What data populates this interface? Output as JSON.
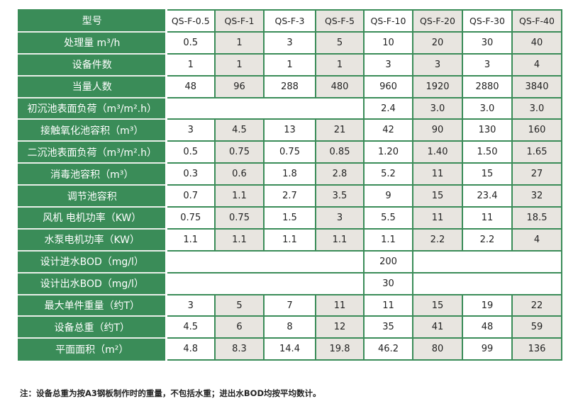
{
  "table": {
    "header_label": "型号",
    "models": [
      "QS-F-0.5",
      "QS-F-1",
      "QS-F-3",
      "QS-F-5",
      "QS-F-10",
      "QS-F-20",
      "QS-F-30",
      "QS-F-40"
    ],
    "rows": [
      {
        "label": "处理量 m³/h",
        "values": [
          "0.5",
          "1",
          "3",
          "5",
          "10",
          "20",
          "30",
          "40"
        ]
      },
      {
        "label": "设备件数",
        "values": [
          "1",
          "1",
          "1",
          "1",
          "3",
          "3",
          "3",
          "4"
        ]
      },
      {
        "label": "当量人数",
        "values": [
          "48",
          "96",
          "288",
          "480",
          "960",
          "1920",
          "2880",
          "3840"
        ]
      },
      {
        "label": "初沉池表面负荷（m³/m².h）",
        "values": [
          null,
          "2.4",
          "3.0",
          "3.0",
          "3.0"
        ],
        "spans": [
          4,
          1,
          1,
          1,
          1
        ]
      },
      {
        "label": "接触氧化池容积（m³）",
        "values": [
          "3",
          "4.5",
          "13",
          "21",
          "42",
          "90",
          "130",
          "160"
        ]
      },
      {
        "label": "二沉池表面负荷（m³/m².h）",
        "values": [
          "0.5",
          "0.75",
          "0.75",
          "0.85",
          "1.20",
          "1.40",
          "1.50",
          "1.65"
        ]
      },
      {
        "label": "消毒池容积（m³）",
        "values": [
          "0.3",
          "0.6",
          "1.8",
          "2.8",
          "5.2",
          "11",
          "15",
          "27"
        ]
      },
      {
        "label": "调节池容积",
        "values": [
          "0.7",
          "1.1",
          "2.7",
          "3.5",
          "9",
          "15",
          "23.4",
          "32"
        ]
      },
      {
        "label": "风机 电机功率（KW）",
        "values": [
          "0.75",
          "0.75",
          "1.5",
          "3",
          "5.5",
          "11",
          "11",
          "18.5"
        ]
      },
      {
        "label": "水泵电机功率（KW）",
        "values": [
          "1.1",
          "1.1",
          "1.1",
          "1.1",
          "1.1",
          "2.2",
          "2.2",
          "4"
        ]
      },
      {
        "label": "设计进水BOD（mg/l）",
        "values": [
          null,
          "200",
          null
        ],
        "spans": [
          4,
          1,
          3
        ]
      },
      {
        "label": "设计出水BOD（mg/l）",
        "values": [
          null,
          "30",
          null
        ],
        "spans": [
          4,
          1,
          3
        ]
      },
      {
        "label": "最大单件重量（约T）",
        "values": [
          "3",
          "5",
          "7",
          "11",
          "11",
          "15",
          "19",
          "22"
        ]
      },
      {
        "label": "设备总重（约T）",
        "values": [
          "4.5",
          "6",
          "8",
          "12",
          "35",
          "41",
          "48",
          "59"
        ]
      },
      {
        "label": "平面面积（m²）",
        "values": [
          "4.8",
          "8.3",
          "14.4",
          "19.8",
          "46.2",
          "80",
          "99",
          "136"
        ]
      }
    ]
  },
  "footnote": "注：设备总重为按A3钢板制作时的重量，不包括水重；进出水BOD均按平均数计。",
  "colors": {
    "green": "#3a8c58",
    "alt_column": "#e8e5e0"
  }
}
